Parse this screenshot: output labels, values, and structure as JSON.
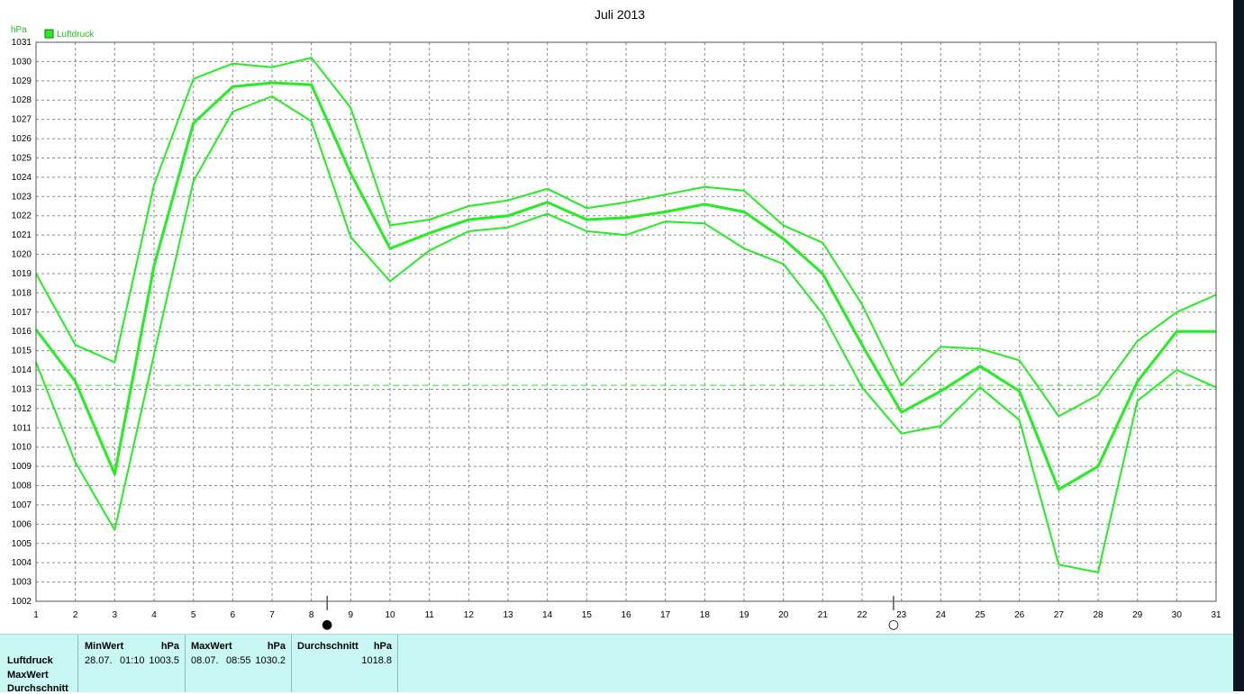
{
  "chart_data": {
    "type": "line",
    "title": "Juli 2013",
    "ylabel": "hPa",
    "ylim": [
      1002,
      1031
    ],
    "x": [
      1,
      2,
      3,
      4,
      5,
      6,
      7,
      8,
      9,
      10,
      11,
      12,
      13,
      14,
      15,
      16,
      17,
      18,
      19,
      20,
      21,
      22,
      23,
      24,
      25,
      26,
      27,
      28,
      29,
      30,
      31
    ],
    "legend": "Luftdruck",
    "color": "#22ee22",
    "grid": true,
    "reference_line": 1013.2,
    "series": [
      {
        "name": "Luftdruck",
        "role": "max",
        "values": [
          1019.0,
          1015.3,
          1014.4,
          1023.6,
          1029.1,
          1029.9,
          1029.7,
          1030.2,
          1027.6,
          1021.5,
          1021.8,
          1022.5,
          1022.8,
          1023.4,
          1022.4,
          1022.7,
          1023.1,
          1023.5,
          1023.3,
          1021.5,
          1020.6,
          1017.4,
          1013.2,
          1015.2,
          1015.1,
          1014.5,
          1011.6,
          1012.7,
          1015.5,
          1017.0,
          1017.9
        ]
      },
      {
        "name": "Luftdruck",
        "role": "avg",
        "values": [
          1016.1,
          1013.4,
          1008.6,
          1019.4,
          1026.8,
          1028.7,
          1028.9,
          1028.8,
          1024.2,
          1020.3,
          1021.1,
          1021.8,
          1022.0,
          1022.7,
          1021.8,
          1021.9,
          1022.2,
          1022.6,
          1022.2,
          1020.8,
          1019.0,
          1015.3,
          1011.8,
          1012.9,
          1014.2,
          1012.9,
          1007.8,
          1009.0,
          1013.4,
          1016.0,
          1016.0
        ]
      },
      {
        "name": "Luftdruck",
        "role": "min",
        "values": [
          1014.4,
          1009.2,
          1005.7,
          1014.8,
          1023.8,
          1027.4,
          1028.2,
          1026.9,
          1020.9,
          1018.6,
          1020.2,
          1021.2,
          1021.4,
          1022.1,
          1021.2,
          1021.0,
          1021.7,
          1021.6,
          1020.3,
          1019.5,
          1016.9,
          1013.1,
          1010.7,
          1011.1,
          1013.1,
          1011.4,
          1003.9,
          1003.5,
          1012.4,
          1014.0,
          1013.1
        ]
      }
    ],
    "moon_markers": [
      {
        "x": 8.4,
        "symbol": "●"
      },
      {
        "x": 22.8,
        "symbol": "○"
      }
    ]
  },
  "table": {
    "row_labels": [
      "Luftdruck",
      "MaxWert",
      "Durchschnitt"
    ],
    "min": {
      "header": "MinWert",
      "unit": "hPa",
      "date": "28.07.",
      "time": "01:10",
      "value": "1003.5"
    },
    "max": {
      "header": "MaxWert",
      "unit": "hPa",
      "date": "08.07.",
      "time": "08:55",
      "value": "1030.2"
    },
    "avg": {
      "header": "Durchschnitt",
      "unit": "hPa",
      "value": "1018.8"
    }
  }
}
